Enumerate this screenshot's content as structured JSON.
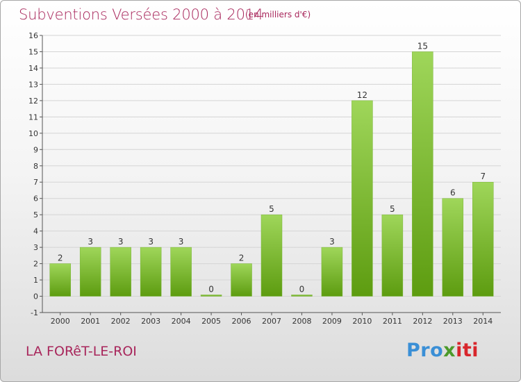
{
  "title": "Subventions Versées 2000 à 2014",
  "subtitle": "(en milliers d'€)",
  "town": "LA FORêT-LE-ROI",
  "logo": {
    "p1": "Pro",
    "p2": "x",
    "p3": "iti"
  },
  "colors": {
    "bar_top": "#9fd65a",
    "bar_bottom": "#5d9c10",
    "title": "#a8265b",
    "grid": "#d4d4d4"
  },
  "chart_data": {
    "type": "bar",
    "title": "Subventions Versées 2000 à 2014",
    "subtitle": "(en milliers d'€)",
    "categories": [
      "2000",
      "2001",
      "2002",
      "2003",
      "2004",
      "2005",
      "2006",
      "2007",
      "2008",
      "2009",
      "2010",
      "2011",
      "2012",
      "2013",
      "2014"
    ],
    "values": [
      2,
      3,
      3,
      3,
      3,
      0,
      2,
      5,
      0,
      3,
      12,
      5,
      15,
      6,
      7
    ],
    "xlabel": "",
    "ylabel": "",
    "ylim": [
      -1,
      16
    ],
    "yticks": [
      -1,
      0,
      1,
      2,
      3,
      4,
      5,
      6,
      7,
      8,
      9,
      10,
      11,
      12,
      13,
      14,
      15,
      16
    ],
    "grid": true
  }
}
